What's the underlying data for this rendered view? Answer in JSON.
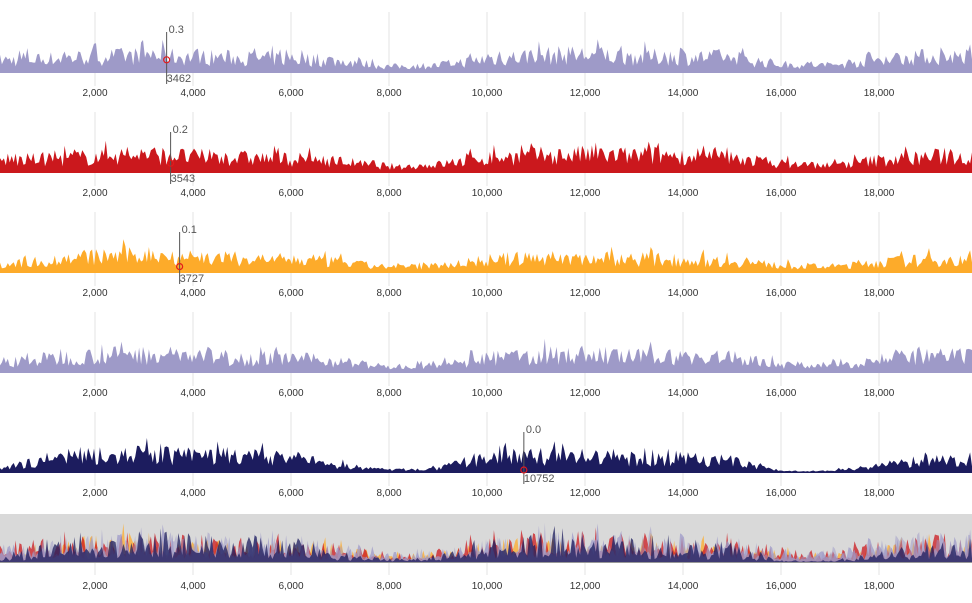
{
  "chart_data": [
    {
      "type": "area",
      "color": "#9e9ac8",
      "xlim": [
        60,
        19900
      ],
      "ylim": [
        0,
        1
      ],
      "envelope": [
        0.55,
        0.6,
        0.7,
        0.75,
        0.7,
        0.65,
        0.6,
        0.5,
        0.25,
        0.3,
        0.6,
        0.75,
        0.8,
        0.7,
        0.7,
        0.65,
        0.35,
        0.3,
        0.6,
        0.7
      ],
      "focus": {
        "x": 3462,
        "value": "0.3",
        "x_label": "3462"
      }
    },
    {
      "type": "area",
      "color": "#cb181d",
      "xlim": [
        60,
        19900
      ],
      "ylim": [
        0,
        1
      ],
      "envelope": [
        0.5,
        0.6,
        0.7,
        0.8,
        0.7,
        0.65,
        0.6,
        0.5,
        0.2,
        0.35,
        0.65,
        0.75,
        0.8,
        0.75,
        0.7,
        0.65,
        0.4,
        0.3,
        0.55,
        0.7
      ],
      "focus": {
        "x": 3543,
        "value": "0.2",
        "x_label": "3543"
      }
    },
    {
      "type": "area",
      "color": "#fdab2a",
      "xlim": [
        60,
        19900
      ],
      "ylim": [
        0,
        1
      ],
      "envelope": [
        0.35,
        0.5,
        0.7,
        0.8,
        0.7,
        0.6,
        0.55,
        0.45,
        0.2,
        0.3,
        0.55,
        0.65,
        0.65,
        0.6,
        0.55,
        0.5,
        0.3,
        0.25,
        0.45,
        0.55
      ],
      "focus": {
        "x": 3727,
        "value": "0.1",
        "x_label": "3727"
      }
    },
    {
      "type": "area",
      "color": "#9e9ac8",
      "xlim": [
        60,
        19900
      ],
      "ylim": [
        0,
        1
      ],
      "envelope": [
        0.45,
        0.6,
        0.75,
        0.8,
        0.75,
        0.65,
        0.6,
        0.5,
        0.2,
        0.3,
        0.6,
        0.75,
        0.8,
        0.7,
        0.7,
        0.65,
        0.35,
        0.3,
        0.6,
        0.7
      ]
    },
    {
      "type": "area",
      "color": "#1c1c5e",
      "xlim": [
        60,
        19900
      ],
      "ylim": [
        0,
        1
      ],
      "envelope": [
        0.1,
        0.6,
        0.8,
        0.8,
        0.75,
        0.7,
        0.65,
        0.3,
        0.1,
        0.15,
        0.7,
        0.75,
        0.7,
        0.6,
        0.65,
        0.5,
        0.05,
        0.05,
        0.3,
        0.5
      ],
      "focus": {
        "x": 10752,
        "value": "0.0",
        "x_label": "10752"
      }
    }
  ],
  "overview": {
    "type": "area",
    "background": "#d9d9d9"
  },
  "x_ticks": [
    "2,000",
    "4,000",
    "6,000",
    "8,000",
    "10,000",
    "12,000",
    "14,000",
    "16,000",
    "18,000"
  ],
  "x_tick_values": [
    2000,
    4000,
    6000,
    8000,
    10000,
    12000,
    14000,
    16000,
    18000
  ],
  "focus_color": "#e31a1c"
}
